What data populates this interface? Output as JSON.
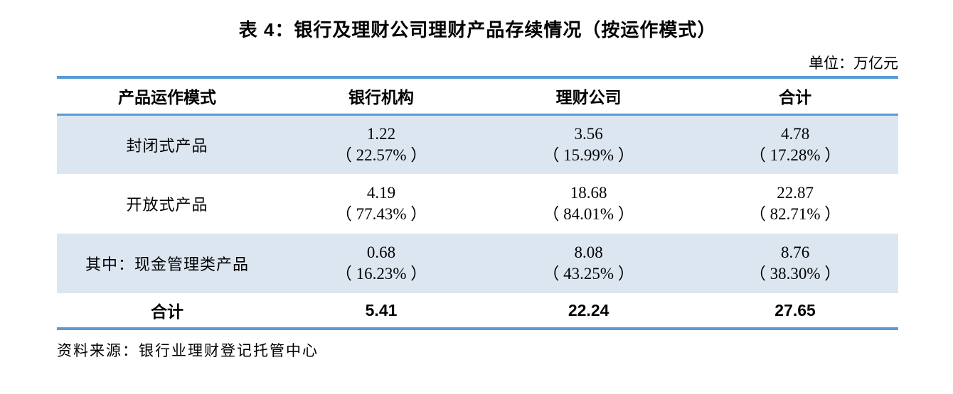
{
  "title": "表 4：银行及理财公司理财产品存续情况（按运作模式）",
  "unit": "单位：万亿元",
  "table": {
    "columns": [
      "产品运作模式",
      "银行机构",
      "理财公司",
      "合计"
    ],
    "rows": [
      {
        "label": "封闭式产品",
        "cells": [
          {
            "value": "1.22",
            "pct": "（ 22.57% ）"
          },
          {
            "value": "3.56",
            "pct": "（ 15.99% ）"
          },
          {
            "value": "4.78",
            "pct": "（ 17.28% ）"
          }
        ]
      },
      {
        "label": "开放式产品",
        "cells": [
          {
            "value": "4.19",
            "pct": "（ 77.43% ）"
          },
          {
            "value": "18.68",
            "pct": "（ 84.01% ）"
          },
          {
            "value": "22.87",
            "pct": "（ 82.71% ）"
          }
        ]
      },
      {
        "label": "其中：现金管理类产品",
        "cells": [
          {
            "value": "0.68",
            "pct": "（ 16.23% ）"
          },
          {
            "value": "8.08",
            "pct": "（ 43.25% ）"
          },
          {
            "value": "8.76",
            "pct": "（ 38.30% ）"
          }
        ]
      }
    ],
    "total": {
      "label": "合计",
      "values": [
        "5.41",
        "22.24",
        "27.65"
      ]
    }
  },
  "source": "资料来源：银行业理财登记托管中心",
  "colors": {
    "rule": "#5b9bd5",
    "shade": "#dce6f1",
    "ink": "#000000"
  },
  "chart_data": {
    "type": "table",
    "title": "表 4：银行及理财公司理财产品存续情况（按运作模式）",
    "unit": "万亿元",
    "columns": [
      "产品运作模式",
      "银行机构",
      "理财公司",
      "合计"
    ],
    "rows": [
      [
        "封闭式产品",
        1.22,
        3.56,
        4.78
      ],
      [
        "开放式产品",
        4.19,
        18.68,
        22.87
      ],
      [
        "其中：现金管理类产品",
        0.68,
        8.08,
        8.76
      ],
      [
        "合计",
        5.41,
        22.24,
        27.65
      ]
    ],
    "percentages": [
      [
        "封闭式产品",
        22.57,
        15.99,
        17.28
      ],
      [
        "开放式产品",
        77.43,
        84.01,
        82.71
      ],
      [
        "其中：现金管理类产品",
        16.23,
        43.25,
        38.3
      ]
    ]
  }
}
